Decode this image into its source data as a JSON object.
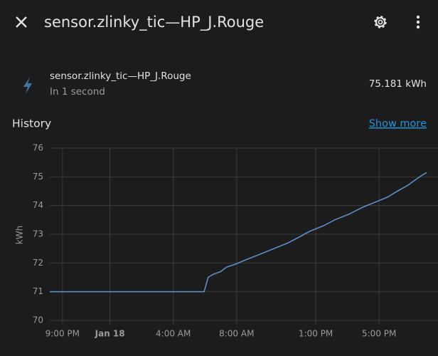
{
  "header": {
    "title": "sensor.zlinky_tic—HP_J.Rouge"
  },
  "entity": {
    "name": "sensor.zlinky_tic—HP_J.Rouge",
    "secondary": "In 1 second",
    "state": "75.181 kWh"
  },
  "history": {
    "title": "History",
    "link": "Show more"
  },
  "chart_data": {
    "type": "line",
    "y_label": "kWh",
    "x": [
      -3.8,
      5.95,
      6.2,
      6.5,
      7.0,
      7.35,
      7.9,
      8.55,
      9.45,
      10.35,
      11.25,
      11.95,
      12.6,
      13.5,
      14.2,
      15.1,
      16.0,
      16.9,
      17.55,
      18.15,
      18.8,
      19.3,
      19.7,
      20.0
    ],
    "series": [
      {
        "color": "#5b8fc5",
        "values": [
          71,
          71,
          71.5,
          71.6,
          71.7,
          71.85,
          71.95,
          72.1,
          72.3,
          72.5,
          72.7,
          72.9,
          73.1,
          73.3,
          73.5,
          73.7,
          73.95,
          74.15,
          74.3,
          74.5,
          74.7,
          74.9,
          75.05,
          75.15
        ]
      }
    ],
    "xlim": [
      -3.8,
      20
    ],
    "ylim": [
      70,
      76
    ],
    "yticks": [
      70,
      71,
      72,
      73,
      74,
      75,
      76
    ],
    "xticks": [
      {
        "value": -3,
        "label": "9:00 PM"
      },
      {
        "value": 0,
        "label": "Jan 18"
      },
      {
        "value": 4,
        "label": "4:00 AM"
      },
      {
        "value": 8,
        "label": "8:00 AM"
      },
      {
        "value": 13,
        "label": "1:00 PM"
      },
      {
        "value": 17,
        "label": "5:00 PM"
      }
    ],
    "grid": true
  }
}
